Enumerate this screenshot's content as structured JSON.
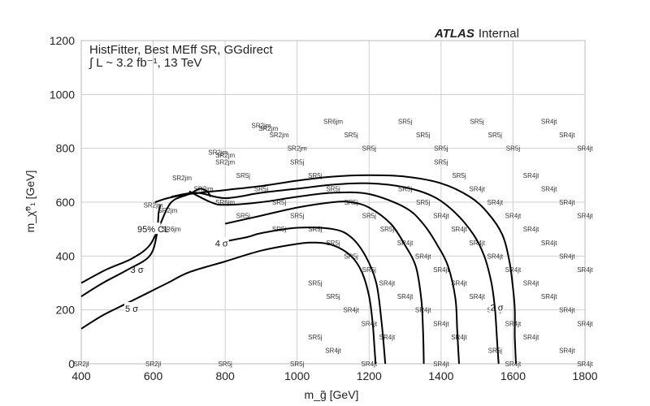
{
  "chart_data": {
    "type": "contour",
    "title_lines": [
      "HistFitter, Best MEff SR, GGdirect",
      "∫ L ~ 3.2 fb⁻¹, 13 TeV"
    ],
    "experiment": {
      "bold": "ATLAS",
      "rest": "Internal"
    },
    "xlabel": "m_g̃ [GeV]",
    "ylabel": "m_χ̃⁰₁ [GeV]",
    "xlim": [
      400,
      1800
    ],
    "ylim": [
      0,
      1200
    ],
    "xticks": [
      400,
      600,
      800,
      1000,
      1200,
      1400,
      1600,
      1800
    ],
    "yticks": [
      0,
      200,
      400,
      600,
      800,
      1000,
      1200
    ],
    "grid": true,
    "contours": [
      {
        "label": "2 σ",
        "label_at": [
          1555,
          210
        ],
        "points": [
          [
            605,
            600
          ],
          [
            640,
            615
          ],
          [
            700,
            630
          ],
          [
            800,
            645
          ],
          [
            900,
            660
          ],
          [
            1000,
            680
          ],
          [
            1100,
            695
          ],
          [
            1200,
            700
          ],
          [
            1300,
            695
          ],
          [
            1400,
            670
          ],
          [
            1480,
            620
          ],
          [
            1530,
            560
          ],
          [
            1570,
            480
          ],
          [
            1590,
            380
          ],
          [
            1600,
            280
          ],
          [
            1605,
            200
          ],
          [
            1605,
            100
          ],
          [
            1608,
            0
          ]
        ]
      },
      {
        "label": "",
        "label_at": null,
        "points": [
          [
            650,
            620
          ],
          [
            720,
            635
          ],
          [
            800,
            615
          ],
          [
            900,
            635
          ],
          [
            1000,
            650
          ],
          [
            1100,
            665
          ],
          [
            1200,
            670
          ],
          [
            1300,
            655
          ],
          [
            1380,
            620
          ],
          [
            1440,
            560
          ],
          [
            1490,
            480
          ],
          [
            1520,
            400
          ],
          [
            1540,
            300
          ],
          [
            1550,
            200
          ],
          [
            1555,
            100
          ],
          [
            1560,
            0
          ]
        ]
      },
      {
        "label": "",
        "label_at": null,
        "points": [
          [
            700,
            640
          ],
          [
            760,
            600
          ],
          [
            800,
            590
          ],
          [
            900,
            600
          ],
          [
            1000,
            620
          ],
          [
            1100,
            635
          ],
          [
            1200,
            630
          ],
          [
            1300,
            580
          ],
          [
            1350,
            520
          ],
          [
            1390,
            440
          ],
          [
            1420,
            360
          ],
          [
            1440,
            240
          ],
          [
            1445,
            120
          ],
          [
            1450,
            0
          ]
        ]
      },
      {
        "label": "",
        "label_at": null,
        "points": [
          [
            800,
            520
          ],
          [
            900,
            550
          ],
          [
            1000,
            580
          ],
          [
            1100,
            600
          ],
          [
            1150,
            600
          ],
          [
            1200,
            580
          ],
          [
            1260,
            520
          ],
          [
            1300,
            440
          ],
          [
            1330,
            360
          ],
          [
            1345,
            240
          ],
          [
            1350,
            120
          ],
          [
            1352,
            0
          ]
        ]
      },
      {
        "label": "4 σ",
        "label_at": [
          790,
          447
        ],
        "points": [
          [
            780,
            450
          ],
          [
            860,
            470
          ],
          [
            900,
            485
          ],
          [
            1000,
            505
          ],
          [
            1100,
            500
          ],
          [
            1150,
            470
          ],
          [
            1190,
            400
          ],
          [
            1220,
            300
          ],
          [
            1235,
            150
          ],
          [
            1245,
            0
          ]
        ]
      },
      {
        "label": "3 σ",
        "label_at": [
          555,
          350
        ],
        "points": [
          [
            400,
            300
          ],
          [
            470,
            350
          ],
          [
            540,
            390
          ],
          [
            590,
            440
          ],
          [
            620,
            520
          ],
          [
            640,
            580
          ],
          [
            660,
            610
          ],
          [
            700,
            630
          ],
          [
            730,
            650
          ],
          [
            750,
            640
          ],
          [
            760,
            620
          ]
        ]
      },
      {
        "label": "5 σ",
        "label_at": [
          540,
          205
        ],
        "points": [
          [
            400,
            130
          ],
          [
            460,
            180
          ],
          [
            520,
            220
          ],
          [
            580,
            260
          ],
          [
            640,
            300
          ],
          [
            700,
            340
          ],
          [
            800,
            380
          ],
          [
            900,
            420
          ],
          [
            1000,
            445
          ],
          [
            1050,
            450
          ],
          [
            1100,
            440
          ],
          [
            1150,
            400
          ],
          [
            1180,
            340
          ],
          [
            1200,
            250
          ],
          [
            1210,
            150
          ],
          [
            1215,
            60
          ],
          [
            1218,
            0
          ]
        ]
      },
      {
        "label": "95% CL",
        "label_at": [
          600,
          500
        ],
        "points": [
          [
            400,
            250
          ],
          [
            460,
            300
          ],
          [
            530,
            350
          ],
          [
            590,
            400
          ],
          [
            610,
            480
          ],
          [
            615,
            560
          ],
          [
            620,
            590
          ]
        ]
      }
    ],
    "signal_regions": [
      {
        "x": 400,
        "y": 0,
        "label": "SR2jl"
      },
      {
        "x": 600,
        "y": 0,
        "label": "SR2jl"
      },
      {
        "x": 800,
        "y": 0,
        "label": "SR5j"
      },
      {
        "x": 1000,
        "y": 0,
        "label": "SR5j"
      },
      {
        "x": 1200,
        "y": 0,
        "label": "SR4jt"
      },
      {
        "x": 1400,
        "y": 0,
        "label": "SR4jt"
      },
      {
        "x": 1600,
        "y": 0,
        "label": "SR4jt"
      },
      {
        "x": 1800,
        "y": 0,
        "label": "SR4jt"
      },
      {
        "x": 1100,
        "y": 50,
        "label": "SR4jt"
      },
      {
        "x": 1550,
        "y": 50,
        "label": "SR5j"
      },
      {
        "x": 1750,
        "y": 50,
        "label": "SR4jt"
      },
      {
        "x": 1050,
        "y": 100,
        "label": "SR5j"
      },
      {
        "x": 1250,
        "y": 100,
        "label": "SR4jt"
      },
      {
        "x": 1450,
        "y": 100,
        "label": "SR4jt"
      },
      {
        "x": 1650,
        "y": 100,
        "label": "SR4jt"
      },
      {
        "x": 1200,
        "y": 150,
        "label": "SR4jt"
      },
      {
        "x": 1400,
        "y": 150,
        "label": "SR4jt"
      },
      {
        "x": 1600,
        "y": 150,
        "label": "SR4jt"
      },
      {
        "x": 1800,
        "y": 150,
        "label": "SR4jt"
      },
      {
        "x": 1150,
        "y": 200,
        "label": "SR4jt"
      },
      {
        "x": 1350,
        "y": 200,
        "label": "SR4jt"
      },
      {
        "x": 1550,
        "y": 200,
        "label": "SR4jt"
      },
      {
        "x": 1750,
        "y": 200,
        "label": "SR4jt"
      },
      {
        "x": 1100,
        "y": 250,
        "label": "SR5j"
      },
      {
        "x": 1300,
        "y": 250,
        "label": "SR4jt"
      },
      {
        "x": 1500,
        "y": 250,
        "label": "SR4jt"
      },
      {
        "x": 1700,
        "y": 250,
        "label": "SR4jt"
      },
      {
        "x": 1050,
        "y": 300,
        "label": "SR5j"
      },
      {
        "x": 1250,
        "y": 300,
        "label": "SR4jt"
      },
      {
        "x": 1450,
        "y": 300,
        "label": "SR4jt"
      },
      {
        "x": 1650,
        "y": 300,
        "label": "SR4jt"
      },
      {
        "x": 1200,
        "y": 350,
        "label": "SR5j"
      },
      {
        "x": 1400,
        "y": 350,
        "label": "SR4jt"
      },
      {
        "x": 1600,
        "y": 350,
        "label": "SR4jt"
      },
      {
        "x": 1800,
        "y": 350,
        "label": "SR4jt"
      },
      {
        "x": 1150,
        "y": 400,
        "label": "SR5j"
      },
      {
        "x": 1350,
        "y": 400,
        "label": "SR4jt"
      },
      {
        "x": 1550,
        "y": 400,
        "label": "SR4jt"
      },
      {
        "x": 1750,
        "y": 400,
        "label": "SR4jt"
      },
      {
        "x": 1100,
        "y": 450,
        "label": "SR5j"
      },
      {
        "x": 1300,
        "y": 450,
        "label": "SR4jt"
      },
      {
        "x": 1500,
        "y": 450,
        "label": "SR4jt"
      },
      {
        "x": 1700,
        "y": 450,
        "label": "SR4jt"
      },
      {
        "x": 950,
        "y": 500,
        "label": "SR5j"
      },
      {
        "x": 1050,
        "y": 500,
        "label": "SR5j"
      },
      {
        "x": 1250,
        "y": 500,
        "label": "SR5j"
      },
      {
        "x": 1450,
        "y": 500,
        "label": "SR4jt"
      },
      {
        "x": 1650,
        "y": 500,
        "label": "SR4jt"
      },
      {
        "x": 650,
        "y": 500,
        "label": "SR6jm"
      },
      {
        "x": 850,
        "y": 550,
        "label": "SR5j"
      },
      {
        "x": 1000,
        "y": 550,
        "label": "SR5j"
      },
      {
        "x": 1200,
        "y": 550,
        "label": "SR5j"
      },
      {
        "x": 1400,
        "y": 550,
        "label": "SR4jt"
      },
      {
        "x": 1600,
        "y": 550,
        "label": "SR4jt"
      },
      {
        "x": 1800,
        "y": 550,
        "label": "SR4jt"
      },
      {
        "x": 950,
        "y": 600,
        "label": "SR5j"
      },
      {
        "x": 1150,
        "y": 600,
        "label": "SR5j"
      },
      {
        "x": 1350,
        "y": 600,
        "label": "SR5j"
      },
      {
        "x": 1550,
        "y": 600,
        "label": "SR4jt"
      },
      {
        "x": 1750,
        "y": 600,
        "label": "SR4jt"
      },
      {
        "x": 600,
        "y": 590,
        "label": "SR2jm"
      },
      {
        "x": 640,
        "y": 570,
        "label": "SR2jm"
      },
      {
        "x": 800,
        "y": 600,
        "label": "SR6jm"
      },
      {
        "x": 900,
        "y": 650,
        "label": "SR5j"
      },
      {
        "x": 1100,
        "y": 650,
        "label": "SR5j"
      },
      {
        "x": 1300,
        "y": 650,
        "label": "SR5j"
      },
      {
        "x": 1500,
        "y": 650,
        "label": "SR4jt"
      },
      {
        "x": 1700,
        "y": 650,
        "label": "SR4jt"
      },
      {
        "x": 740,
        "y": 650,
        "label": "SR2jm"
      },
      {
        "x": 680,
        "y": 690,
        "label": "SR2jm"
      },
      {
        "x": 850,
        "y": 700,
        "label": "SR5j"
      },
      {
        "x": 1050,
        "y": 700,
        "label": "SR5j"
      },
      {
        "x": 1450,
        "y": 700,
        "label": "SR5j"
      },
      {
        "x": 1650,
        "y": 700,
        "label": "SR4jt"
      },
      {
        "x": 1000,
        "y": 750,
        "label": "SR5j"
      },
      {
        "x": 1400,
        "y": 750,
        "label": "SR5j"
      },
      {
        "x": 800,
        "y": 750,
        "label": "SR2jm"
      },
      {
        "x": 780,
        "y": 785,
        "label": "SR2jm"
      },
      {
        "x": 800,
        "y": 775,
        "label": "SR2jm"
      },
      {
        "x": 1000,
        "y": 800,
        "label": "SR2jm"
      },
      {
        "x": 1200,
        "y": 800,
        "label": "SR5j"
      },
      {
        "x": 1400,
        "y": 800,
        "label": "SR5j"
      },
      {
        "x": 1600,
        "y": 800,
        "label": "SR5j"
      },
      {
        "x": 1800,
        "y": 800,
        "label": "SR4jt"
      },
      {
        "x": 950,
        "y": 850,
        "label": "SR2jm"
      },
      {
        "x": 1150,
        "y": 850,
        "label": "SR5j"
      },
      {
        "x": 1350,
        "y": 850,
        "label": "SR5j"
      },
      {
        "x": 1550,
        "y": 850,
        "label": "SR5j"
      },
      {
        "x": 1750,
        "y": 850,
        "label": "SR4jt"
      },
      {
        "x": 900,
        "y": 885,
        "label": "SR2jm"
      },
      {
        "x": 920,
        "y": 875,
        "label": "SR2jm"
      },
      {
        "x": 1100,
        "y": 900,
        "label": "SR6jm"
      },
      {
        "x": 1300,
        "y": 900,
        "label": "SR5j"
      },
      {
        "x": 1500,
        "y": 900,
        "label": "SR5j"
      },
      {
        "x": 1700,
        "y": 900,
        "label": "SR4jt"
      }
    ]
  }
}
